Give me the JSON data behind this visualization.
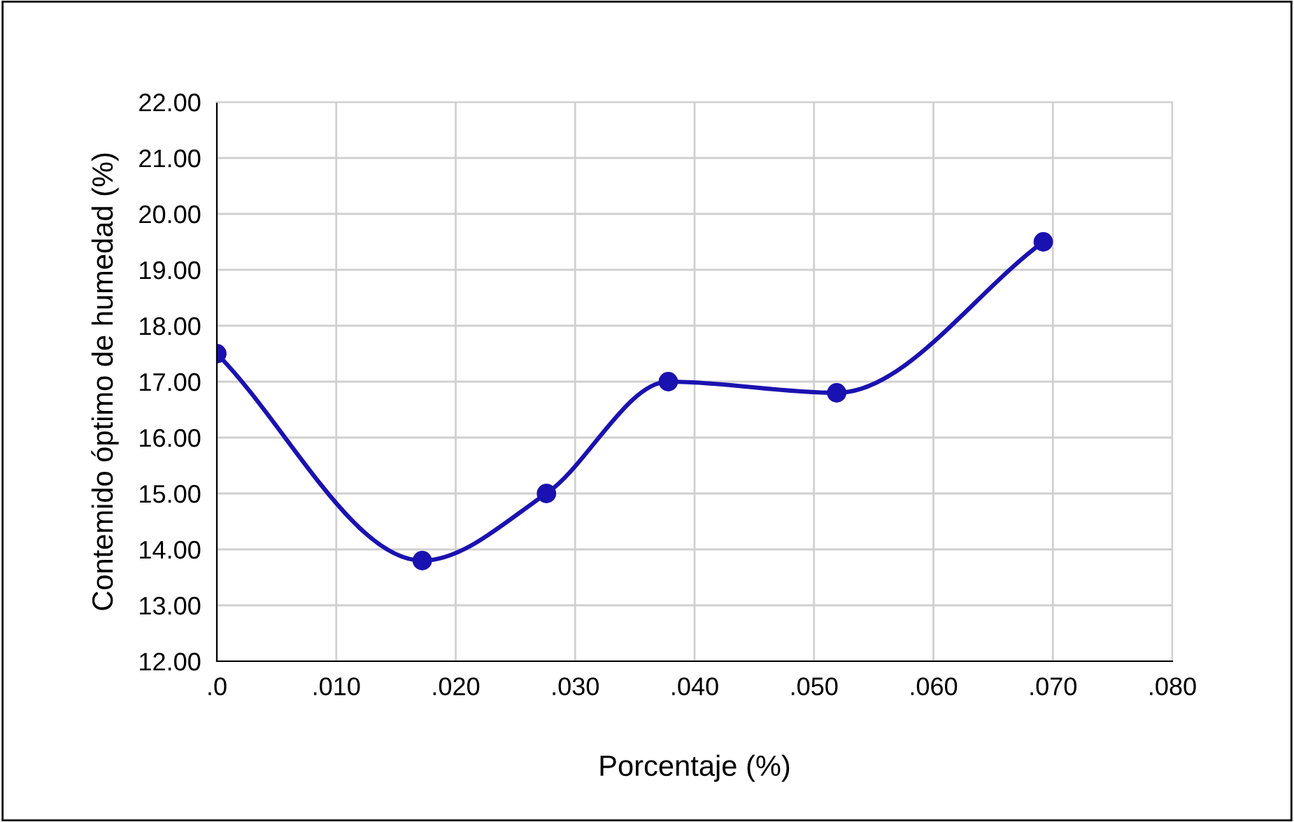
{
  "chart_data": {
    "type": "line",
    "xlabel": "Porcentaje (%)",
    "ylabel": "Contemido óptimo de humedad (%)",
    "x": [
      0,
      0.0172,
      0.0276,
      0.0378,
      0.0519,
      0.0692
    ],
    "series": [
      {
        "color": "#1a12b0",
        "values": [
          17.5,
          13.8,
          15.0,
          17.0,
          16.8,
          19.5
        ]
      }
    ],
    "xlim": [
      0,
      0.08
    ],
    "xticks": [
      {
        "value": 0,
        "label": ".0"
      },
      {
        "value": 0.01,
        "label": ".010"
      },
      {
        "value": 0.02,
        "label": ".020"
      },
      {
        "value": 0.03,
        "label": ".030"
      },
      {
        "value": 0.04,
        "label": ".040"
      },
      {
        "value": 0.05,
        "label": ".050"
      },
      {
        "value": 0.06,
        "label": ".060"
      },
      {
        "value": 0.07,
        "label": ".070"
      },
      {
        "value": 0.08,
        "label": ".080"
      }
    ],
    "ylim": [
      12,
      22
    ],
    "yticks": [
      {
        "value": 12,
        "label": "12.00"
      },
      {
        "value": 13,
        "label": "13.00"
      },
      {
        "value": 14,
        "label": "14.00"
      },
      {
        "value": 15,
        "label": "15.00"
      },
      {
        "value": 16,
        "label": "16.00"
      },
      {
        "value": 17,
        "label": "17.00"
      },
      {
        "value": 18,
        "label": "18.00"
      },
      {
        "value": 19,
        "label": "19.00"
      },
      {
        "value": 20,
        "label": "20.00"
      },
      {
        "value": 21,
        "label": "21.00"
      },
      {
        "value": 22,
        "label": "22.00"
      }
    ],
    "grid": true,
    "marker": "circle",
    "line_style": "solid"
  }
}
